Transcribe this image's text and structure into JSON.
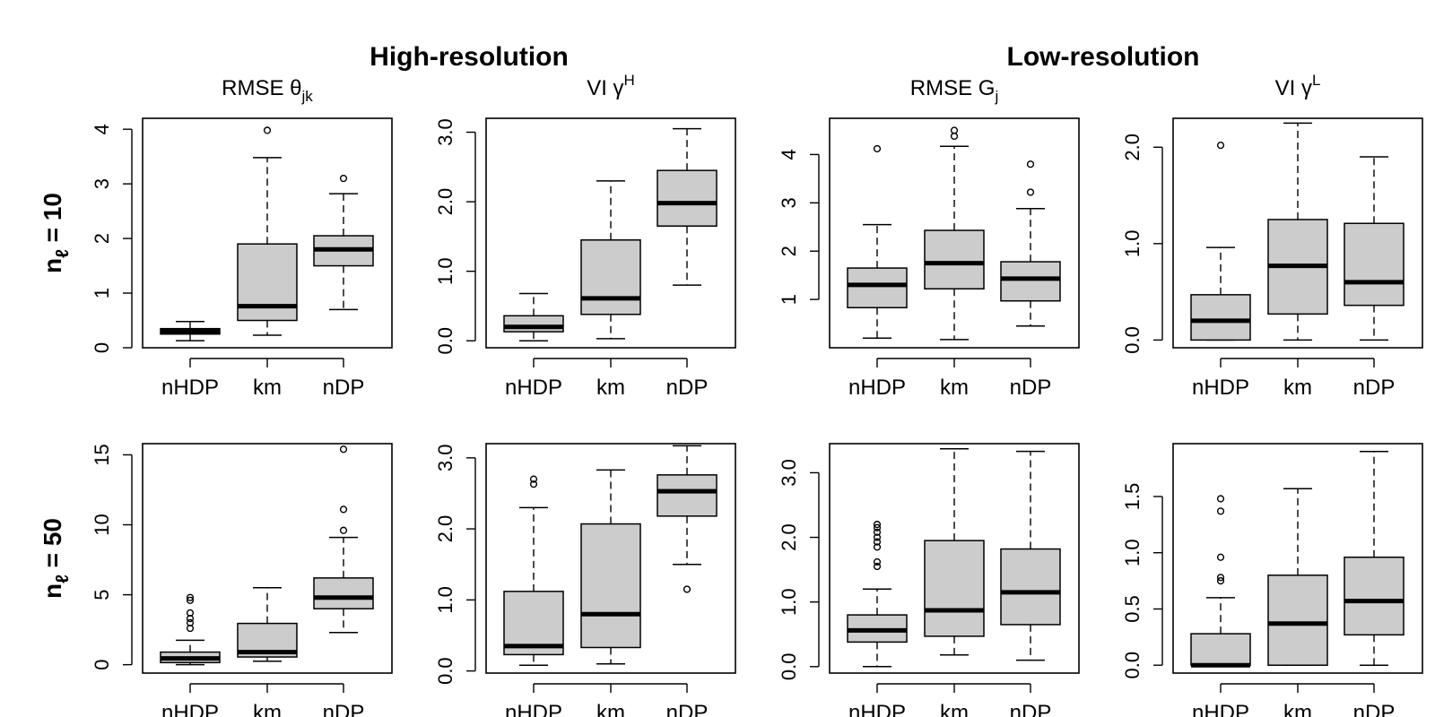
{
  "group_titles": {
    "high": "High-resolution",
    "low": "Low-resolution"
  },
  "row_labels": [
    {
      "main": "n",
      "sub": "ℓ",
      "rest": " = 10"
    },
    {
      "main": "n",
      "sub": "ℓ",
      "rest": " = 50"
    }
  ],
  "chart_data": [
    {
      "type": "boxplot",
      "row": 0,
      "col": 0,
      "group": "high",
      "title": {
        "main": "RMSE θ",
        "sub": "jk",
        "sup": ""
      },
      "categories": [
        "nHDP",
        "km",
        "nDP"
      ],
      "ylim": [
        0,
        4.2
      ],
      "yticks": [
        0,
        1,
        2,
        3,
        4
      ],
      "ytick_labels": [
        "0",
        "1",
        "2",
        "3",
        "4"
      ],
      "boxes": [
        {
          "name": "nHDP",
          "whisker_low": 0.13,
          "q1": 0.25,
          "median": 0.3,
          "q3": 0.35,
          "whisker_high": 0.48,
          "outliers": []
        },
        {
          "name": "km",
          "whisker_low": 0.23,
          "q1": 0.5,
          "median": 0.76,
          "q3": 1.9,
          "whisker_high": 3.48,
          "outliers": [
            3.98
          ]
        },
        {
          "name": "nDP",
          "whisker_low": 0.7,
          "q1": 1.5,
          "median": 1.8,
          "q3": 2.05,
          "whisker_high": 2.82,
          "outliers": [
            3.1
          ]
        }
      ]
    },
    {
      "type": "boxplot",
      "row": 0,
      "col": 1,
      "group": "high",
      "title": {
        "main": "VI γ",
        "sub": "",
        "sup": "H"
      },
      "categories": [
        "nHDP",
        "km",
        "nDP"
      ],
      "ylim": [
        -0.1,
        3.2
      ],
      "yticks": [
        0,
        1,
        2,
        3
      ],
      "ytick_labels": [
        "0.0",
        "1.0",
        "2.0",
        "3.0"
      ],
      "boxes": [
        {
          "name": "nHDP",
          "whisker_low": 0.0,
          "q1": 0.13,
          "median": 0.2,
          "q3": 0.36,
          "whisker_high": 0.68,
          "outliers": []
        },
        {
          "name": "km",
          "whisker_low": 0.03,
          "q1": 0.38,
          "median": 0.61,
          "q3": 1.45,
          "whisker_high": 2.3,
          "outliers": []
        },
        {
          "name": "nDP",
          "whisker_low": 0.8,
          "q1": 1.65,
          "median": 1.98,
          "q3": 2.45,
          "whisker_high": 3.05,
          "outliers": []
        }
      ]
    },
    {
      "type": "boxplot",
      "row": 0,
      "col": 2,
      "group": "low",
      "title": {
        "main": "RMSE G",
        "sub": "j",
        "sup": ""
      },
      "categories": [
        "nHDP",
        "km",
        "nDP"
      ],
      "ylim": [
        0.0,
        4.75
      ],
      "yticks": [
        1,
        2,
        3,
        4
      ],
      "ytick_labels": [
        "1",
        "2",
        "3",
        "4"
      ],
      "boxes": [
        {
          "name": "nHDP",
          "whisker_low": 0.2,
          "q1": 0.83,
          "median": 1.3,
          "q3": 1.65,
          "whisker_high": 2.55,
          "outliers": [
            4.12
          ]
        },
        {
          "name": "km",
          "whisker_low": 0.17,
          "q1": 1.22,
          "median": 1.75,
          "q3": 2.43,
          "whisker_high": 4.17,
          "outliers": [
            4.38,
            4.5
          ]
        },
        {
          "name": "nDP",
          "whisker_low": 0.45,
          "q1": 0.97,
          "median": 1.43,
          "q3": 1.78,
          "whisker_high": 2.88,
          "outliers": [
            3.22,
            3.8
          ]
        }
      ]
    },
    {
      "type": "boxplot",
      "row": 0,
      "col": 3,
      "group": "low",
      "title": {
        "main": "VI γ",
        "sub": "",
        "sup": "L"
      },
      "categories": [
        "nHDP",
        "km",
        "nDP"
      ],
      "ylim": [
        -0.08,
        2.3
      ],
      "yticks": [
        0,
        1,
        2
      ],
      "ytick_labels": [
        "0.0",
        "1.0",
        "2.0"
      ],
      "boxes": [
        {
          "name": "nHDP",
          "whisker_low": 0.0,
          "q1": 0.0,
          "median": 0.2,
          "q3": 0.47,
          "whisker_high": 0.96,
          "outliers": [
            2.02
          ]
        },
        {
          "name": "km",
          "whisker_low": 0.0,
          "q1": 0.27,
          "median": 0.77,
          "q3": 1.25,
          "whisker_high": 2.25,
          "outliers": []
        },
        {
          "name": "nDP",
          "whisker_low": 0.0,
          "q1": 0.36,
          "median": 0.6,
          "q3": 1.21,
          "whisker_high": 1.9,
          "outliers": []
        }
      ]
    },
    {
      "type": "boxplot",
      "row": 1,
      "col": 0,
      "group": "high",
      "title": {
        "main": "",
        "sub": "",
        "sup": ""
      },
      "categories": [
        "nHDP",
        "km",
        "nDP"
      ],
      "ylim": [
        -0.6,
        15.8
      ],
      "yticks": [
        0,
        5,
        10,
        15
      ],
      "ytick_labels": [
        "0",
        "5",
        "10",
        "15"
      ],
      "boxes": [
        {
          "name": "nHDP",
          "whisker_low": 0.0,
          "q1": 0.15,
          "median": 0.45,
          "q3": 0.9,
          "whisker_high": 1.75,
          "outliers": [
            2.6,
            3.0,
            3.3,
            3.7,
            4.6,
            4.8
          ]
        },
        {
          "name": "km",
          "whisker_low": 0.25,
          "q1": 0.55,
          "median": 0.9,
          "q3": 2.95,
          "whisker_high": 5.5,
          "outliers": []
        },
        {
          "name": "nDP",
          "whisker_low": 2.3,
          "q1": 4.0,
          "median": 4.8,
          "q3": 6.2,
          "whisker_high": 9.1,
          "outliers": [
            9.6,
            11.1,
            15.4
          ]
        }
      ]
    },
    {
      "type": "boxplot",
      "row": 1,
      "col": 1,
      "group": "high",
      "title": {
        "main": "",
        "sub": "",
        "sup": ""
      },
      "categories": [
        "nHDP",
        "km",
        "nDP"
      ],
      "ylim": [
        -0.03,
        3.2
      ],
      "yticks": [
        0,
        1,
        2,
        3
      ],
      "ytick_labels": [
        "0.0",
        "1.0",
        "2.0",
        "3.0"
      ],
      "boxes": [
        {
          "name": "nHDP",
          "whisker_low": 0.08,
          "q1": 0.23,
          "median": 0.35,
          "q3": 1.12,
          "whisker_high": 2.3,
          "outliers": [
            2.63,
            2.7
          ]
        },
        {
          "name": "km",
          "whisker_low": 0.1,
          "q1": 0.33,
          "median": 0.8,
          "q3": 2.07,
          "whisker_high": 2.83,
          "outliers": []
        },
        {
          "name": "nDP",
          "whisker_low": 1.5,
          "q1": 2.18,
          "median": 2.53,
          "q3": 2.76,
          "whisker_high": 3.17,
          "outliers": [
            1.15
          ]
        }
      ]
    },
    {
      "type": "boxplot",
      "row": 1,
      "col": 2,
      "group": "low",
      "title": {
        "main": "",
        "sub": "",
        "sup": ""
      },
      "categories": [
        "nHDP",
        "km",
        "nDP"
      ],
      "ylim": [
        -0.1,
        3.45
      ],
      "yticks": [
        0,
        1,
        2,
        3
      ],
      "ytick_labels": [
        "0.0",
        "1.0",
        "2.0",
        "3.0"
      ],
      "boxes": [
        {
          "name": "nHDP",
          "whisker_low": 0.0,
          "q1": 0.38,
          "median": 0.56,
          "q3": 0.8,
          "whisker_high": 1.2,
          "outliers": [
            1.55,
            1.62,
            1.85,
            1.93,
            2.0,
            2.08,
            2.15,
            2.2
          ]
        },
        {
          "name": "km",
          "whisker_low": 0.18,
          "q1": 0.47,
          "median": 0.87,
          "q3": 1.95,
          "whisker_high": 3.37,
          "outliers": []
        },
        {
          "name": "nDP",
          "whisker_low": 0.1,
          "q1": 0.65,
          "median": 1.15,
          "q3": 1.82,
          "whisker_high": 3.33,
          "outliers": []
        }
      ]
    },
    {
      "type": "boxplot",
      "row": 1,
      "col": 3,
      "group": "low",
      "title": {
        "main": "",
        "sub": "",
        "sup": ""
      },
      "categories": [
        "nHDP",
        "km",
        "nDP"
      ],
      "ylim": [
        -0.07,
        1.97
      ],
      "yticks": [
        0,
        0.5,
        1,
        1.5
      ],
      "ytick_labels": [
        "0.0",
        "0.5",
        "1.0",
        "1.5"
      ],
      "boxes": [
        {
          "name": "nHDP",
          "whisker_low": 0.0,
          "q1": 0.0,
          "median": 0.0,
          "q3": 0.28,
          "whisker_high": 0.6,
          "outliers": [
            0.75,
            0.78,
            0.96,
            1.37,
            1.48
          ]
        },
        {
          "name": "km",
          "whisker_low": 0.0,
          "q1": 0.0,
          "median": 0.37,
          "q3": 0.8,
          "whisker_high": 1.57,
          "outliers": []
        },
        {
          "name": "nDP",
          "whisker_low": 0.0,
          "q1": 0.27,
          "median": 0.57,
          "q3": 0.96,
          "whisker_high": 1.9,
          "outliers": []
        }
      ]
    }
  ]
}
